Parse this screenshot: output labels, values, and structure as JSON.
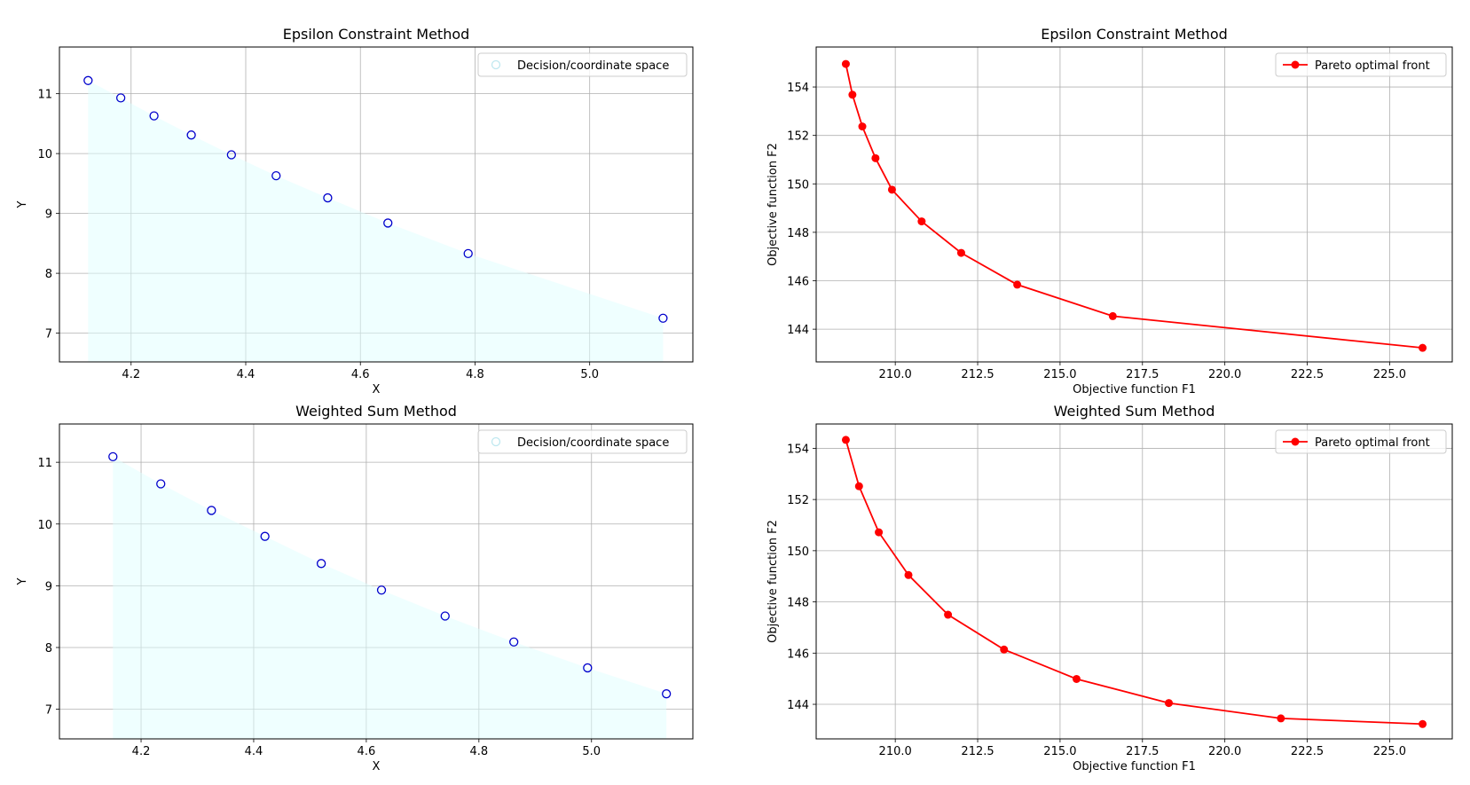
{
  "colors": {
    "scatter_edge": "#0000cc",
    "fill": "#e0ffff",
    "line": "#ff0000",
    "grid": "#b0b0b0"
  },
  "chart_data": [
    {
      "type": "scatter",
      "title": "Epsilon Constraint Method",
      "xlabel": "X",
      "ylabel": "Y",
      "xlim": [
        4.075,
        5.18
      ],
      "ylim": [
        6.52,
        11.78
      ],
      "xticks": [
        4.2,
        4.4,
        4.6,
        4.8,
        5.0
      ],
      "yticks": [
        7,
        8,
        9,
        10,
        11
      ],
      "tick_labels_x": [
        "4.2",
        "4.4",
        "4.6",
        "4.8",
        "5.0"
      ],
      "tick_labels_y": [
        "7",
        "8",
        "9",
        "10",
        "11"
      ],
      "grid": true,
      "legend_position": "top-right",
      "series": [
        {
          "name": "Decision/coordinate space",
          "x": [
            4.125,
            4.182,
            4.24,
            4.305,
            4.375,
            4.453,
            4.543,
            4.648,
            4.788,
            5.128
          ],
          "y": [
            11.22,
            10.93,
            10.63,
            10.31,
            9.98,
            9.63,
            9.26,
            8.84,
            8.33,
            7.25
          ]
        }
      ]
    },
    {
      "type": "line",
      "title": "Epsilon Constraint Method",
      "xlabel": "Objective function F1",
      "ylabel": "Objective function F2",
      "xlim": [
        207.6,
        226.9
      ],
      "ylim": [
        142.65,
        155.65
      ],
      "xticks": [
        210.0,
        212.5,
        215.0,
        217.5,
        220.0,
        222.5,
        225.0
      ],
      "yticks": [
        144,
        146,
        148,
        150,
        152,
        154
      ],
      "tick_labels_x": [
        "210.0",
        "212.5",
        "215.0",
        "217.5",
        "220.0",
        "222.5",
        "225.0"
      ],
      "tick_labels_y": [
        "144",
        "146",
        "148",
        "150",
        "152",
        "154"
      ],
      "grid": true,
      "legend_position": "top-right",
      "series": [
        {
          "name": "Pareto optimal front",
          "x": [
            208.5,
            208.7,
            209.0,
            209.4,
            209.9,
            210.8,
            212.0,
            213.7,
            216.6,
            226.0
          ],
          "y": [
            154.95,
            153.68,
            152.37,
            151.06,
            149.76,
            148.45,
            147.15,
            145.84,
            144.54,
            143.23
          ]
        }
      ]
    },
    {
      "type": "scatter",
      "title": "Weighted Sum Method",
      "xlabel": "X",
      "ylabel": "Y",
      "xlim": [
        4.055,
        5.18
      ],
      "ylim": [
        6.52,
        11.62
      ],
      "xticks": [
        4.2,
        4.4,
        4.6,
        4.8,
        5.0
      ],
      "yticks": [
        7,
        8,
        9,
        10,
        11
      ],
      "tick_labels_x": [
        "4.2",
        "4.4",
        "4.6",
        "4.8",
        "5.0"
      ],
      "tick_labels_y": [
        "7",
        "8",
        "9",
        "10",
        "11"
      ],
      "grid": true,
      "legend_position": "top-right",
      "series": [
        {
          "name": "Decision/coordinate space",
          "x": [
            4.15,
            4.235,
            4.325,
            4.42,
            4.52,
            4.627,
            4.74,
            4.862,
            4.993,
            5.133
          ],
          "y": [
            11.09,
            10.65,
            10.22,
            9.8,
            9.36,
            8.93,
            8.51,
            8.09,
            7.67,
            7.25
          ]
        }
      ]
    },
    {
      "type": "line",
      "title": "Weighted Sum Method",
      "xlabel": "Objective function F1",
      "ylabel": "Objective function F2",
      "xlim": [
        207.6,
        226.9
      ],
      "ylim": [
        142.65,
        154.95
      ],
      "xticks": [
        210.0,
        212.5,
        215.0,
        217.5,
        220.0,
        222.5,
        225.0
      ],
      "yticks": [
        144,
        146,
        148,
        150,
        152,
        154
      ],
      "tick_labels_x": [
        "210.0",
        "212.5",
        "215.0",
        "217.5",
        "220.0",
        "222.5",
        "225.0"
      ],
      "tick_labels_y": [
        "144",
        "146",
        "148",
        "150",
        "152",
        "154"
      ],
      "grid": true,
      "legend_position": "top-right",
      "series": [
        {
          "name": "Pareto optimal front",
          "x": [
            208.5,
            208.9,
            209.5,
            210.4,
            211.6,
            213.3,
            215.5,
            218.3,
            221.7,
            226.0
          ],
          "y": [
            154.33,
            152.52,
            150.72,
            149.05,
            147.5,
            146.14,
            144.99,
            144.05,
            143.45,
            143.23
          ]
        }
      ]
    }
  ]
}
